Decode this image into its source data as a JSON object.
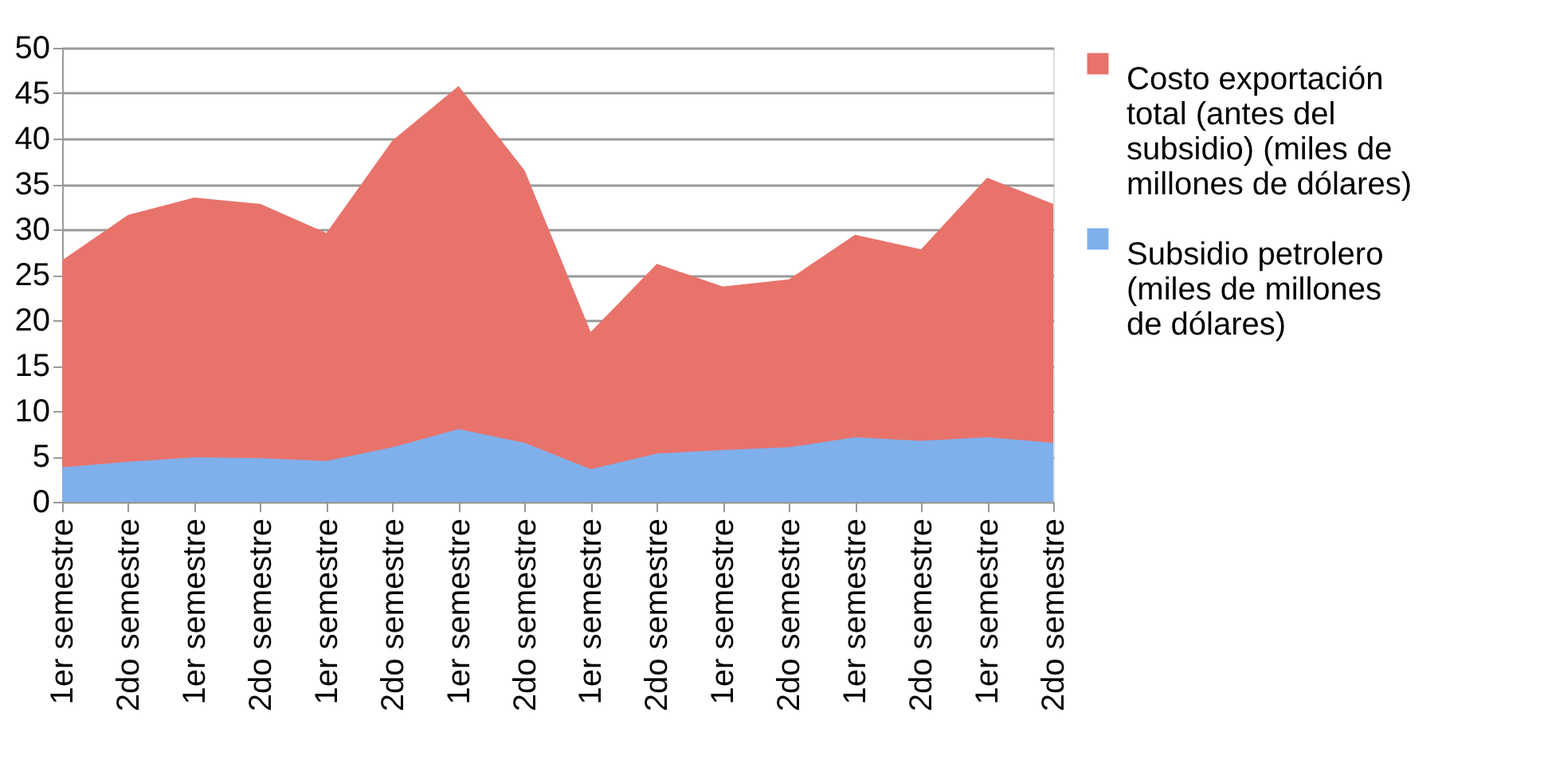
{
  "chart_data": {
    "type": "area",
    "categories": [
      "1er semestre",
      "2do semestre",
      "1er semestre",
      "2do semestre",
      "1er semestre",
      "2do semestre",
      "1er semestre",
      "2do semestre",
      "1er semestre",
      "2do semestre",
      "1er semestre",
      "2do semestre",
      "1er semestre",
      "2do semestre",
      "1er semestre",
      "2do semestre"
    ],
    "series": [
      {
        "name": "Costo exportación total (antes del subsidio) (miles de millones de dólares)",
        "color": "#e8736b",
        "values": [
          26.6,
          31.6,
          33.5,
          32.8,
          29.6,
          39.8,
          45.8,
          36.5,
          18.7,
          26.2,
          23.7,
          24.5,
          29.4,
          27.8,
          35.7,
          32.8
        ]
      },
      {
        "name": "Subsidio petrolero (miles de millones de dólares)",
        "color": "#7fb0ec",
        "values": [
          3.8,
          4.4,
          4.9,
          4.8,
          4.5,
          6.0,
          8.0,
          6.5,
          3.6,
          5.3,
          5.7,
          6.0,
          7.1,
          6.7,
          7.1,
          6.5
        ]
      }
    ],
    "ylim": [
      0,
      50
    ],
    "yticks": [
      0,
      5,
      10,
      15,
      20,
      25,
      30,
      35,
      40,
      45,
      50
    ],
    "grid": "y",
    "legend": "right"
  }
}
